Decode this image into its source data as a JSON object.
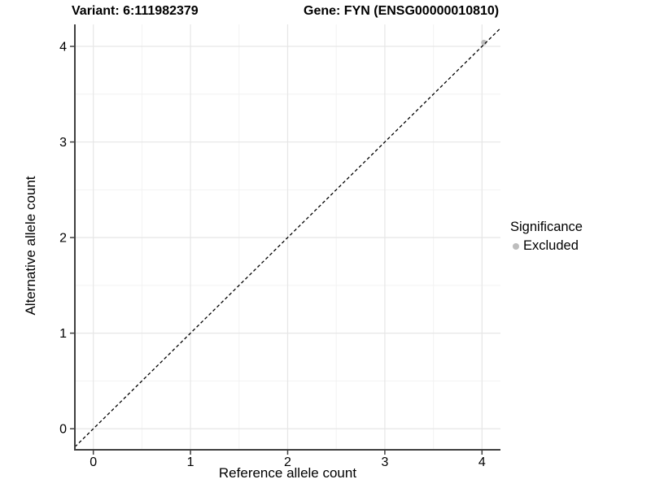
{
  "header": {
    "variant_title": "Variant: 6:111982379",
    "gene_title": "Gene: FYN (ENSG00000010810)"
  },
  "legend": {
    "title": "Significance",
    "items": [
      {
        "label": "Excluded",
        "color": "#bdbdbd"
      }
    ]
  },
  "colors": {
    "axis_line": "#3f3f3f",
    "grid_major": "#e6e6e6",
    "grid_minor": "#f2f2f2",
    "identity_line": "#000000",
    "tick_label": "#000000",
    "point": "#bdbdbd"
  },
  "chart_data": {
    "type": "scatter",
    "title": "Variant: 6:111982379   Gene: FYN (ENSG00000010810)",
    "xlabel": "Reference allele count",
    "ylabel": "Alternative allele count",
    "xlim": [
      -0.19,
      4.19
    ],
    "ylim": [
      -0.22,
      4.23
    ],
    "xticks": [
      0,
      1,
      2,
      3,
      4
    ],
    "yticks": [
      0,
      1,
      2,
      3,
      4
    ],
    "xticks_minor": [
      0.5,
      1.5,
      2.5,
      3.5
    ],
    "yticks_minor": [
      0.5,
      1.5,
      2.5,
      3.5
    ],
    "grid": true,
    "legend_position": "right",
    "series": [
      {
        "name": "Excluded",
        "color": "#bdbdbd",
        "points": [
          [
            4.02,
            4.04
          ]
        ]
      }
    ],
    "reference_line": {
      "type": "identity",
      "style": "dashed",
      "color": "#000000"
    }
  }
}
